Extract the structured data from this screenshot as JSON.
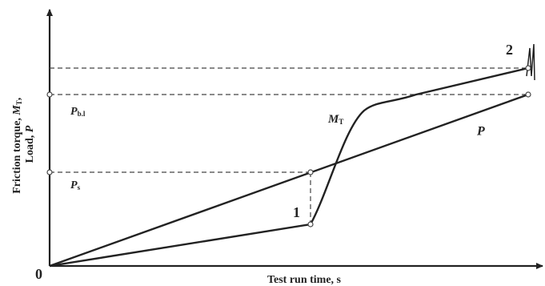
{
  "y_axis_label": {
    "a": "Friction torque, ",
    "b": "M",
    "c": "T",
    "d": ", ",
    "e": "Load, ",
    "f": "P"
  },
  "x_axis_label": "Test run time, s",
  "origin": "0",
  "labels": {
    "p_bl": {
      "main": "P",
      "sub": "b.l"
    },
    "p_s": {
      "main": "P",
      "sub": "s"
    },
    "m_t": {
      "main": "M",
      "sub": "T"
    },
    "p": "P",
    "point_1": "1",
    "point_2": "2"
  }
}
